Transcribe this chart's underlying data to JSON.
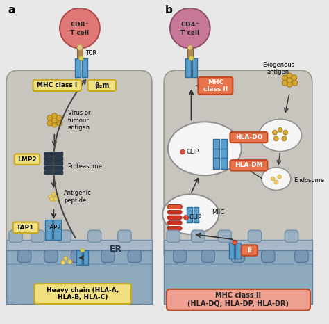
{
  "bg_color": "#e8e8e8",
  "cell_a_bg": "#c8c5be",
  "cell_b_bg": "#c8c5be",
  "er_top_color": "#a8b8c8",
  "er_body_color": "#8fa8be",
  "er_finger_color": "#9ab0c2",
  "blue_mhc": "#5b9ec9",
  "blue_mhc_dark": "#2e6e9e",
  "blue_mhc_light": "#7ab5d8",
  "orange_box_fc": "#e8724a",
  "orange_box_ec": "#c04820",
  "yellow_box_fc": "#f0e080",
  "yellow_box_ec": "#c8a820",
  "antigen_gold": "#d4a832",
  "antigen_dark": "#a07818",
  "proteasome_color": "#2a3a4a",
  "t_cell_a_fc": "#e07878",
  "t_cell_a_ec": "#b04848",
  "t_cell_b_fc": "#c87898",
  "t_cell_b_ec": "#905068",
  "tcr_stem_color": "#b08850",
  "clip_dot_color": "#e05040",
  "white_vesicle": "#f5f5f5",
  "vesicle_ec": "#909090",
  "red_helix_color": "#cc3322",
  "panel_a_label": "a",
  "panel_b_label": "b",
  "cd8_label": "CD8$^+$\nT cell",
  "cd4_label": "CD4$^+$\nT cell",
  "tcr_label": "TCR",
  "mhc1_label": "MHC class I",
  "beta2m_label": "β₂m",
  "virus_label": "Virus or\ntumour\nantigen",
  "lmp2_label": "LMP2",
  "proteasome_label": "Proteasome",
  "antigenic_label": "Antigenic\npeptide",
  "tap1_label": "TAP1",
  "tap2_label": "TAP2",
  "er_label": "ER",
  "heavy_chain_label": "Heavy chain (HLA-A,\nHLA-B, HLA-C)",
  "mhc2_label": "MHC\nclass II",
  "hla_do_label": "HLA-DO",
  "hla_dm_label": "HLA-DM",
  "clip_label": "CLIP",
  "miic_label": "MIIC",
  "ii_label": "Ii",
  "mhc2_bottom_label": "MHC class II\n(HLA-DQ, HLA-DP, HLA-DR)",
  "exogenous_label": "Exogenous\nantigen",
  "endosome_label": "Endosome"
}
